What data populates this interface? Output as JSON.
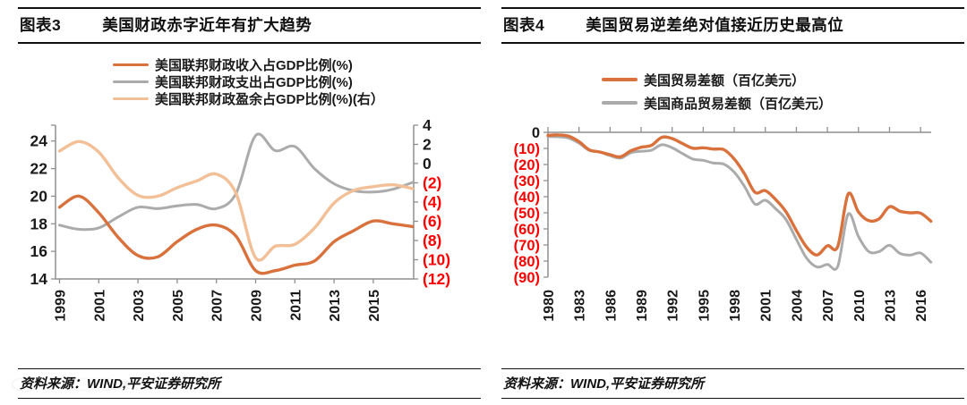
{
  "colors": {
    "orange": "#d9713c",
    "gray": "#ababab",
    "peach": "#f2bf97",
    "red": "#fe0000",
    "black": "#1a1a1a",
    "axis": "#8f8f8f"
  },
  "panels": [
    {
      "tag": "图表3",
      "title": "美国财政赤字近年有扩大趋势",
      "source": "资料来源：WIND,平安证券研究所"
    },
    {
      "tag": "图表4",
      "title": "美国贸易逆差绝对值接近历史最高位",
      "source": "资料来源：WIND,平安证券研究所"
    }
  ],
  "chart_data": [
    {
      "type": "line",
      "title": "美国财政赤字近年有扩大趋势",
      "x": [
        1999,
        2000,
        2001,
        2002,
        2003,
        2004,
        2005,
        2006,
        2007,
        2008,
        2009,
        2010,
        2011,
        2012,
        2013,
        2014,
        2015,
        2016,
        2017
      ],
      "x_tick_years": [
        1999,
        2001,
        2003,
        2005,
        2007,
        2009,
        2011,
        2013,
        2015
      ],
      "x_tick_labels": [
        "1999",
        "2001",
        "2003",
        "2005",
        "2007",
        "2009",
        "2011",
        "2013",
        "2015"
      ],
      "left_axis": {
        "min": 14,
        "max": 25.15,
        "tick_values": [
          24,
          22,
          20,
          18,
          16,
          14
        ],
        "tick_labels": [
          "24",
          "22",
          "20",
          "18",
          "16",
          "14"
        ]
      },
      "right_axis": {
        "min": -12,
        "max": 4,
        "tick_values": [
          4,
          2,
          0,
          -2,
          -4,
          -6,
          -8,
          -10,
          -12
        ],
        "tick_labels": [
          "4",
          "2",
          "0",
          "(2)",
          "(4)",
          "(6)",
          "(8)",
          "(10)",
          "(12)"
        ]
      },
      "series": [
        {
          "name": "美国联邦财政收入占GDP比例(%)",
          "axis": "left",
          "color_key": "orange",
          "width": 3.4,
          "values": [
            19.2,
            20.0,
            18.8,
            17.0,
            15.7,
            15.6,
            16.7,
            17.6,
            17.9,
            17.1,
            14.6,
            14.6,
            15.0,
            15.3,
            16.7,
            17.5,
            18.2,
            18.0,
            17.8
          ]
        },
        {
          "name": "美国联邦财政支出占GDP比例(%)",
          "axis": "left",
          "color_key": "gray",
          "width": 3.0,
          "values": [
            17.9,
            17.6,
            17.7,
            18.5,
            19.2,
            19.1,
            19.3,
            19.4,
            19.1,
            20.2,
            24.4,
            23.3,
            23.6,
            22.0,
            20.9,
            20.4,
            20.3,
            20.5,
            21.0
          ]
        },
        {
          "name": "美国联邦财政盈余占GDP比例(%)(右）",
          "axis": "right",
          "color_key": "peach",
          "width": 3.4,
          "values": [
            1.3,
            2.3,
            1.2,
            -1.5,
            -3.3,
            -3.4,
            -2.5,
            -1.8,
            -1.1,
            -3.1,
            -9.8,
            -8.6,
            -8.4,
            -6.7,
            -4.1,
            -2.8,
            -2.4,
            -2.2,
            -2.6
          ]
        }
      ]
    },
    {
      "type": "line",
      "title": "美国贸易逆差绝对值接近历史最高位",
      "x": [
        1980,
        1981,
        1982,
        1983,
        1984,
        1985,
        1986,
        1987,
        1988,
        1989,
        1990,
        1991,
        1992,
        1993,
        1994,
        1995,
        1996,
        1997,
        1998,
        1999,
        2000,
        2001,
        2002,
        2003,
        2004,
        2005,
        2006,
        2007,
        2008,
        2009,
        2010,
        2011,
        2012,
        2013,
        2014,
        2015,
        2016,
        2017
      ],
      "x_tick_years": [
        1980,
        1983,
        1986,
        1989,
        1992,
        1995,
        1998,
        2001,
        2004,
        2007,
        2010,
        2013,
        2016
      ],
      "x_tick_labels": [
        "1980",
        "1983",
        "1986",
        "1989",
        "1992",
        "1995",
        "1998",
        "2001",
        "2004",
        "2007",
        "2010",
        "2013",
        "2016"
      ],
      "left_axis": {
        "min": -90,
        "max": 0,
        "tick_values": [
          0,
          -10,
          -20,
          -30,
          -40,
          -50,
          -60,
          -70,
          -80,
          -90
        ],
        "tick_labels": [
          "0",
          "(10)",
          "(20)",
          "(30)",
          "(40)",
          "(50)",
          "(60)",
          "(70)",
          "(80)",
          "(90)"
        ]
      },
      "series": [
        {
          "name": "美国贸易差额（百亿美元）",
          "axis": "left",
          "color_key": "orange",
          "width": 3.4,
          "values": [
            -1.9,
            -1.6,
            -2.4,
            -5.8,
            -10.9,
            -12.2,
            -13.9,
            -15.2,
            -11.5,
            -9.3,
            -8.1,
            -3.1,
            -3.9,
            -7.0,
            -9.9,
            -9.6,
            -10.4,
            -10.8,
            -16.6,
            -25.9,
            -37.3,
            -36.2,
            -41.8,
            -49.4,
            -61.0,
            -71.4,
            -76.2,
            -70.5,
            -70.9,
            -38.4,
            -49.5,
            -54.9,
            -53.7,
            -46.2,
            -49.0,
            -50.0,
            -50.2,
            -55.2
          ]
        },
        {
          "name": "美国商品贸易差额（百亿美元）",
          "axis": "left",
          "color_key": "gray",
          "width": 3.0,
          "values": [
            -2.6,
            -2.8,
            -3.6,
            -6.7,
            -11.3,
            -12.2,
            -14.5,
            -16.0,
            -12.7,
            -11.8,
            -11.1,
            -7.7,
            -9.6,
            -13.2,
            -16.6,
            -17.4,
            -19.1,
            -19.8,
            -24.8,
            -33.7,
            -44.6,
            -42.2,
            -47.5,
            -54.2,
            -66.5,
            -78.3,
            -83.7,
            -82.1,
            -83.2,
            -50.9,
            -64.8,
            -74.1,
            -74.1,
            -70.2,
            -75.2,
            -76.3,
            -75.0,
            -80.7
          ]
        }
      ]
    }
  ]
}
